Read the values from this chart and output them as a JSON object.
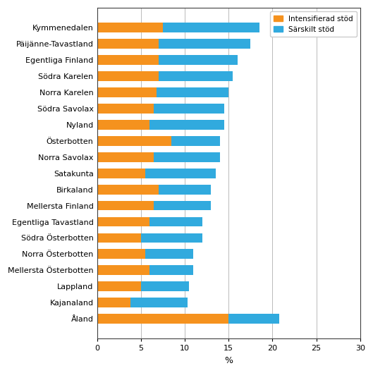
{
  "categories": [
    "Kymmenedalen",
    "Päijänne-Tavastland",
    "Egentliga Finland",
    "Södra Karelen",
    "Norra Karelen",
    "Södra Savolax",
    "Nyland",
    "Österbotten",
    "Norra Savolax",
    "Satakunta",
    "Birkaland",
    "Mellersta Finland",
    "Egentliga Tavastland",
    "Södra Österbotten",
    "Norra Österbotten",
    "Mellersta Österbotten",
    "Lappland",
    "Kajanaland",
    "Åland"
  ],
  "intensifierad": [
    7.5,
    7.0,
    7.0,
    7.0,
    6.8,
    6.5,
    6.0,
    8.5,
    6.5,
    5.5,
    7.0,
    6.5,
    6.0,
    5.0,
    5.5,
    6.0,
    5.0,
    3.8,
    15.0
  ],
  "sarskilt": [
    11.0,
    10.5,
    9.0,
    8.5,
    8.2,
    8.0,
    8.5,
    5.5,
    7.5,
    8.0,
    6.0,
    6.5,
    6.0,
    7.0,
    5.5,
    5.0,
    5.5,
    6.5,
    5.8
  ],
  "color_intensifierad": "#f5921e",
  "color_sarskilt": "#31aade",
  "xlabel": "%",
  "xlim": [
    0,
    30
  ],
  "xticks": [
    0,
    5,
    10,
    15,
    20,
    25,
    30
  ],
  "legend_intensifierad": "Intensifierad stöd",
  "legend_sarskilt": "Särskilt stöd",
  "bar_height": 0.6,
  "grid_color": "#a0a0a0",
  "tick_fontsize": 8.0,
  "xlabel_fontsize": 9.0
}
